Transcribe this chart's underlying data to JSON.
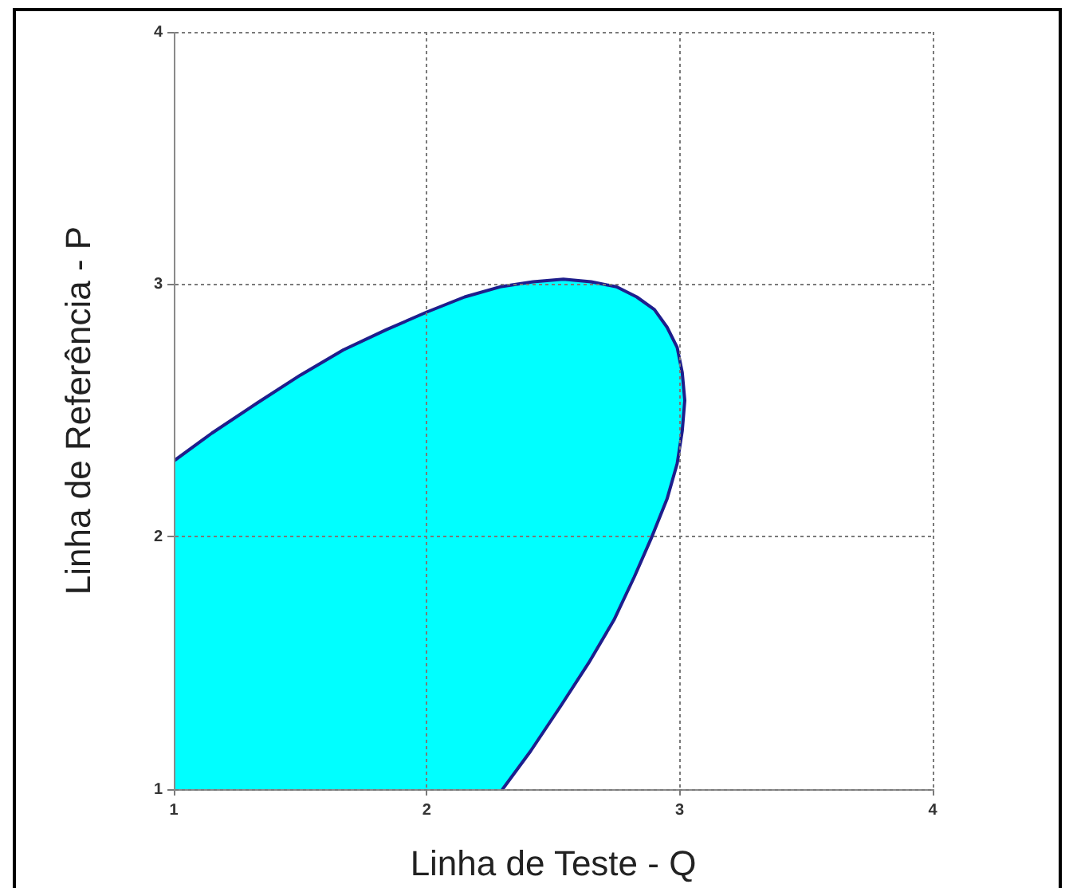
{
  "chart_data": {
    "type": "area",
    "xlabel": "Linha de Teste - Q",
    "ylabel": "Linha de Referência - P",
    "x": [
      1,
      1.15,
      1.33,
      1.5,
      1.67,
      1.84,
      2,
      2.15,
      2.29,
      2.42,
      2.54,
      2.65,
      2.75,
      2.83,
      2.9,
      2.95,
      2.99,
      3.01,
      3.02,
      3.01,
      2.99,
      2.95,
      2.89,
      2.82,
      2.74,
      2.64,
      2.53,
      2.41,
      2.3
    ],
    "values": [
      2.3,
      2.41,
      2.53,
      2.64,
      2.74,
      2.82,
      2.89,
      2.95,
      2.99,
      3.01,
      3.02,
      3.01,
      2.99,
      2.95,
      2.9,
      2.83,
      2.75,
      2.65,
      2.54,
      2.42,
      2.29,
      2.15,
      2,
      1.84,
      1.67,
      1.5,
      1.33,
      1.15,
      1
    ],
    "color": "#00ffff",
    "xlim": [
      1,
      4
    ],
    "ylim": [
      1,
      4
    ],
    "xticks": [
      1,
      2,
      3,
      4
    ],
    "yticks": [
      1,
      2,
      3,
      4
    ],
    "grid": true,
    "legend": false,
    "marker": "none"
  }
}
